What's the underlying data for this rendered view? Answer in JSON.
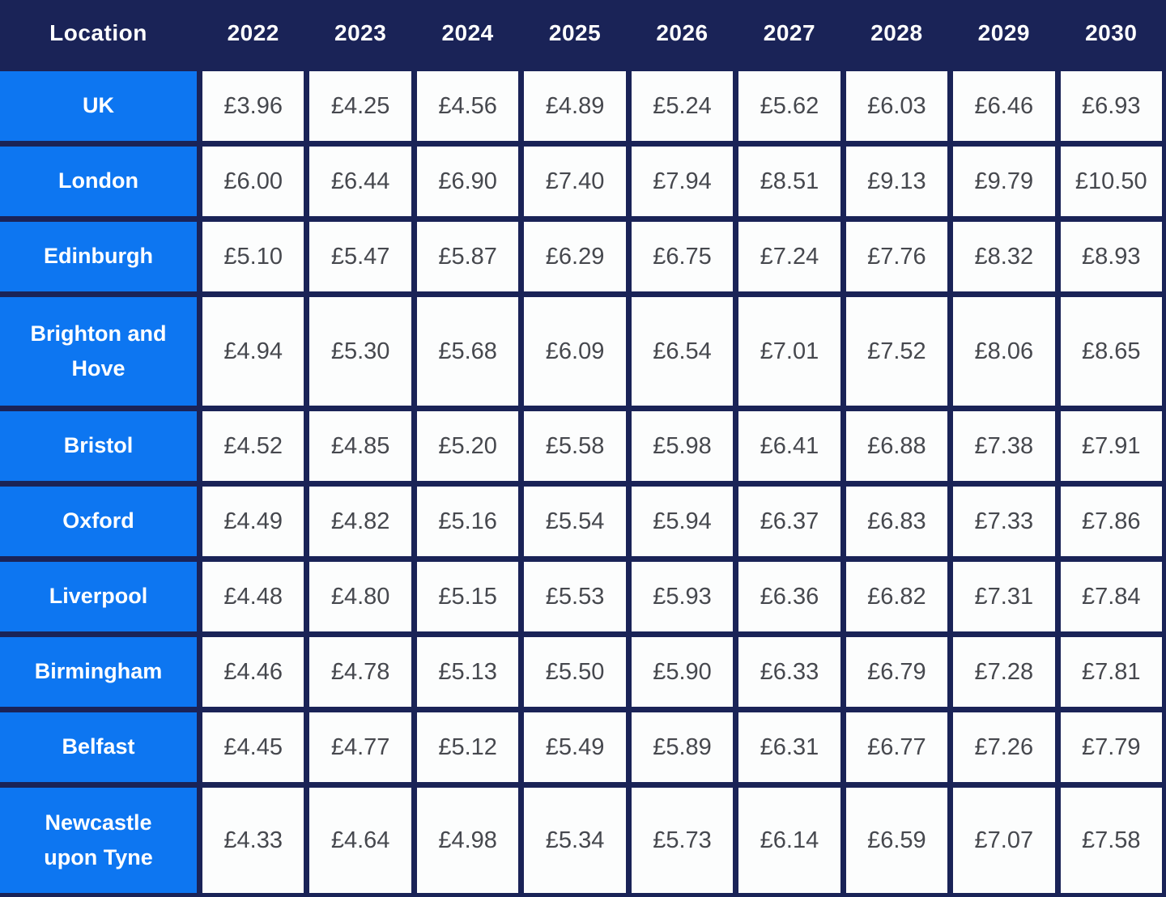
{
  "chart_data": {
    "type": "table",
    "columns": [
      "Location",
      "2022",
      "2023",
      "2024",
      "2025",
      "2026",
      "2027",
      "2028",
      "2029",
      "2030"
    ],
    "rows": [
      {
        "location": "UK",
        "values": [
          "£3.96",
          "£4.25",
          "£4.56",
          "£4.89",
          "£5.24",
          "£5.62",
          "£6.03",
          "£6.46",
          "£6.93"
        ]
      },
      {
        "location": "London",
        "values": [
          "£6.00",
          "£6.44",
          "£6.90",
          "£7.40",
          "£7.94",
          "£8.51",
          "£9.13",
          "£9.79",
          "£10.50"
        ]
      },
      {
        "location": "Edinburgh",
        "values": [
          "£5.10",
          "£5.47",
          "£5.87",
          "£6.29",
          "£6.75",
          "£7.24",
          "£7.76",
          "£8.32",
          "£8.93"
        ]
      },
      {
        "location": "Brighton and Hove",
        "values": [
          "£4.94",
          "£5.30",
          "£5.68",
          "£6.09",
          "£6.54",
          "£7.01",
          "£7.52",
          "£8.06",
          "£8.65"
        ]
      },
      {
        "location": "Bristol",
        "values": [
          "£4.52",
          "£4.85",
          "£5.20",
          "£5.58",
          "£5.98",
          "£6.41",
          "£6.88",
          "£7.38",
          "£7.91"
        ]
      },
      {
        "location": "Oxford",
        "values": [
          "£4.49",
          "£4.82",
          "£5.16",
          "£5.54",
          "£5.94",
          "£6.37",
          "£6.83",
          "£7.33",
          "£7.86"
        ]
      },
      {
        "location": "Liverpool",
        "values": [
          "£4.48",
          "£4.80",
          "£5.15",
          "£5.53",
          "£5.93",
          "£6.36",
          "£6.82",
          "£7.31",
          "£7.84"
        ]
      },
      {
        "location": "Birmingham",
        "values": [
          "£4.46",
          "£4.78",
          "£5.13",
          "£5.50",
          "£5.90",
          "£6.33",
          "£6.79",
          "£7.28",
          "£7.81"
        ]
      },
      {
        "location": "Belfast",
        "values": [
          "£4.45",
          "£4.77",
          "£5.12",
          "£5.49",
          "£5.89",
          "£6.31",
          "£6.77",
          "£7.26",
          "£7.79"
        ]
      },
      {
        "location": "Newcastle upon Tyne",
        "values": [
          "£4.33",
          "£4.64",
          "£4.98",
          "£5.34",
          "£5.73",
          "£6.14",
          "£6.59",
          "£7.07",
          "£7.58"
        ]
      }
    ]
  },
  "colors": {
    "navy_background": "#1a2357",
    "location_blue": "#0d76f1",
    "cell_background": "#fcfdfd",
    "value_text": "#46484e",
    "header_text": "#ffffff"
  }
}
